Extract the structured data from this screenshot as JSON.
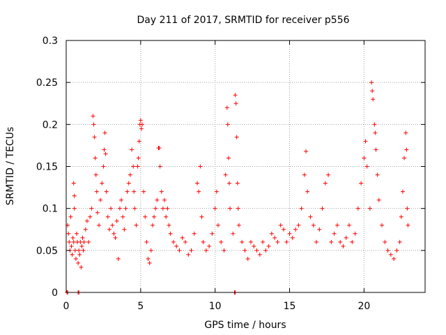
{
  "chart_data": {
    "type": "scatter",
    "title": "Day 211 of 2017, SRMTID for receiver p556",
    "xlabel": "GPS time / hours",
    "ylabel": "SRMTID / TECUs",
    "xlim": [
      0,
      24.1
    ],
    "ylim": [
      0,
      0.3
    ],
    "x_ticks": [
      0,
      5,
      10,
      15,
      20
    ],
    "x_tick_labels": [
      "0",
      "5",
      "10",
      "15",
      "20"
    ],
    "y_ticks": [
      0,
      0.05,
      0.1,
      0.15,
      0.2,
      0.25,
      0.3
    ],
    "y_tick_labels": [
      "0",
      "0.05",
      "0.1",
      "0.15",
      "0.2",
      "0.25",
      "0.3"
    ],
    "grid": true,
    "marker": "plus",
    "color": "#ff0000",
    "series": [
      {
        "name": "SRMTID",
        "points": [
          [
            0.05,
            0
          ],
          [
            0.1,
            0
          ],
          [
            0.8,
            0
          ],
          [
            0.85,
            0
          ],
          [
            11.3,
            0
          ],
          [
            11.35,
            0
          ],
          [
            0.1,
            0.08
          ],
          [
            0.15,
            0.07
          ],
          [
            0.2,
            0.06
          ],
          [
            0.25,
            0.05
          ],
          [
            0.3,
            0.09
          ],
          [
            0.35,
            0.055
          ],
          [
            0.4,
            0.045
          ],
          [
            0.45,
            0.065
          ],
          [
            0.5,
            0.06
          ],
          [
            0.5,
            0.13
          ],
          [
            0.55,
            0.115
          ],
          [
            0.55,
            0.1
          ],
          [
            0.6,
            0.05
          ],
          [
            0.65,
            0.04
          ],
          [
            0.7,
            0.07
          ],
          [
            0.75,
            0.06
          ],
          [
            0.8,
            0.035
          ],
          [
            0.85,
            0.05
          ],
          [
            0.9,
            0.045
          ],
          [
            0.95,
            0.06
          ],
          [
            1.0,
            0.03
          ],
          [
            1.05,
            0.055
          ],
          [
            1.1,
            0.065
          ],
          [
            1.15,
            0.05
          ],
          [
            1.2,
            0.06
          ],
          [
            1.3,
            0.075
          ],
          [
            1.4,
            0.085
          ],
          [
            1.5,
            0.06
          ],
          [
            1.6,
            0.09
          ],
          [
            1.7,
            0.1
          ],
          [
            1.8,
            0.21
          ],
          [
            1.85,
            0.2
          ],
          [
            1.9,
            0.185
          ],
          [
            1.95,
            0.16
          ],
          [
            2.0,
            0.14
          ],
          [
            2.05,
            0.12
          ],
          [
            2.1,
            0.095
          ],
          [
            2.2,
            0.08
          ],
          [
            2.3,
            0.11
          ],
          [
            2.4,
            0.13
          ],
          [
            2.5,
            0.15
          ],
          [
            2.55,
            0.17
          ],
          [
            2.6,
            0.19
          ],
          [
            2.65,
            0.165
          ],
          [
            2.7,
            0.12
          ],
          [
            2.8,
            0.09
          ],
          [
            2.9,
            0.075
          ],
          [
            3.0,
            0.1
          ],
          [
            3.1,
            0.08
          ],
          [
            3.2,
            0.07
          ],
          [
            3.3,
            0.065
          ],
          [
            3.4,
            0.085
          ],
          [
            3.5,
            0.04
          ],
          [
            3.6,
            0.1
          ],
          [
            3.7,
            0.11
          ],
          [
            3.8,
            0.09
          ],
          [
            3.9,
            0.075
          ],
          [
            4.0,
            0.1
          ],
          [
            4.1,
            0.12
          ],
          [
            4.2,
            0.13
          ],
          [
            4.3,
            0.14
          ],
          [
            4.4,
            0.17
          ],
          [
            4.5,
            0.15
          ],
          [
            4.55,
            0.12
          ],
          [
            4.6,
            0.1
          ],
          [
            4.7,
            0.08
          ],
          [
            4.8,
            0.15
          ],
          [
            4.85,
            0.16
          ],
          [
            4.9,
            0.18
          ],
          [
            4.95,
            0.2
          ],
          [
            5.0,
            0.205
          ],
          [
            5.05,
            0.195
          ],
          [
            5.1,
            0.2
          ],
          [
            5.2,
            0.12
          ],
          [
            5.3,
            0.09
          ],
          [
            5.4,
            0.06
          ],
          [
            5.5,
            0.04
          ],
          [
            5.6,
            0.035
          ],
          [
            5.7,
            0.05
          ],
          [
            5.8,
            0.08
          ],
          [
            5.9,
            0.09
          ],
          [
            6.0,
            0.1
          ],
          [
            6.1,
            0.11
          ],
          [
            6.2,
            0.172
          ],
          [
            6.25,
            0.172
          ],
          [
            6.3,
            0.15
          ],
          [
            6.4,
            0.12
          ],
          [
            6.5,
            0.1
          ],
          [
            6.6,
            0.11
          ],
          [
            6.7,
            0.09
          ],
          [
            6.8,
            0.1
          ],
          [
            6.9,
            0.08
          ],
          [
            7.0,
            0.07
          ],
          [
            7.2,
            0.06
          ],
          [
            7.4,
            0.055
          ],
          [
            7.6,
            0.05
          ],
          [
            7.8,
            0.065
          ],
          [
            8.0,
            0.06
          ],
          [
            8.2,
            0.045
          ],
          [
            8.4,
            0.05
          ],
          [
            8.6,
            0.07
          ],
          [
            8.8,
            0.13
          ],
          [
            8.9,
            0.12
          ],
          [
            9.0,
            0.15
          ],
          [
            9.1,
            0.09
          ],
          [
            9.2,
            0.06
          ],
          [
            9.4,
            0.05
          ],
          [
            9.6,
            0.055
          ],
          [
            9.8,
            0.07
          ],
          [
            10.0,
            0.1
          ],
          [
            10.1,
            0.12
          ],
          [
            10.2,
            0.08
          ],
          [
            10.4,
            0.06
          ],
          [
            10.6,
            0.05
          ],
          [
            10.7,
            0.14
          ],
          [
            10.8,
            0.22
          ],
          [
            10.85,
            0.2
          ],
          [
            10.9,
            0.16
          ],
          [
            10.95,
            0.13
          ],
          [
            11.0,
            0.1
          ],
          [
            11.2,
            0.07
          ],
          [
            11.35,
            0.235
          ],
          [
            11.4,
            0.225
          ],
          [
            11.45,
            0.185
          ],
          [
            11.5,
            0.13
          ],
          [
            11.55,
            0.1
          ],
          [
            11.6,
            0.08
          ],
          [
            11.8,
            0.06
          ],
          [
            12.0,
            0.05
          ],
          [
            12.2,
            0.04
          ],
          [
            12.4,
            0.06
          ],
          [
            12.6,
            0.055
          ],
          [
            12.8,
            0.05
          ],
          [
            13.0,
            0.045
          ],
          [
            13.2,
            0.06
          ],
          [
            13.4,
            0.05
          ],
          [
            13.6,
            0.055
          ],
          [
            13.8,
            0.07
          ],
          [
            14.0,
            0.065
          ],
          [
            14.2,
            0.06
          ],
          [
            14.4,
            0.08
          ],
          [
            14.6,
            0.075
          ],
          [
            14.8,
            0.06
          ],
          [
            15.0,
            0.07
          ],
          [
            15.2,
            0.065
          ],
          [
            15.4,
            0.075
          ],
          [
            15.6,
            0.08
          ],
          [
            15.8,
            0.1
          ],
          [
            16.0,
            0.14
          ],
          [
            16.1,
            0.168
          ],
          [
            16.2,
            0.12
          ],
          [
            16.4,
            0.09
          ],
          [
            16.6,
            0.08
          ],
          [
            16.8,
            0.06
          ],
          [
            17.0,
            0.075
          ],
          [
            17.2,
            0.1
          ],
          [
            17.4,
            0.13
          ],
          [
            17.6,
            0.14
          ],
          [
            17.8,
            0.06
          ],
          [
            18.0,
            0.07
          ],
          [
            18.2,
            0.08
          ],
          [
            18.4,
            0.06
          ],
          [
            18.6,
            0.055
          ],
          [
            18.8,
            0.065
          ],
          [
            19.0,
            0.08
          ],
          [
            19.2,
            0.06
          ],
          [
            19.4,
            0.07
          ],
          [
            19.6,
            0.1
          ],
          [
            19.8,
            0.13
          ],
          [
            20.0,
            0.16
          ],
          [
            20.1,
            0.18
          ],
          [
            20.2,
            0.15
          ],
          [
            20.4,
            0.1
          ],
          [
            20.5,
            0.25
          ],
          [
            20.55,
            0.24
          ],
          [
            20.6,
            0.23
          ],
          [
            20.7,
            0.2
          ],
          [
            20.75,
            0.19
          ],
          [
            20.8,
            0.17
          ],
          [
            20.9,
            0.14
          ],
          [
            21.0,
            0.11
          ],
          [
            21.2,
            0.08
          ],
          [
            21.4,
            0.06
          ],
          [
            21.6,
            0.05
          ],
          [
            21.8,
            0.045
          ],
          [
            22.0,
            0.04
          ],
          [
            22.2,
            0.05
          ],
          [
            22.4,
            0.06
          ],
          [
            22.5,
            0.09
          ],
          [
            22.6,
            0.12
          ],
          [
            22.7,
            0.16
          ],
          [
            22.8,
            0.19
          ],
          [
            22.85,
            0.17
          ],
          [
            22.9,
            0.1
          ],
          [
            22.95,
            0.08
          ]
        ]
      }
    ]
  }
}
